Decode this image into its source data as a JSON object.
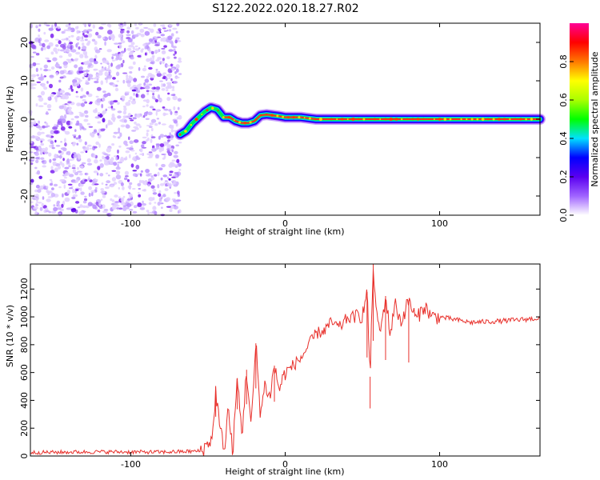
{
  "figure": {
    "title": "S122.2022.020.18.27.R02"
  },
  "chart_data": [
    {
      "type": "heatmap",
      "xlabel": "Height of straight line (km)",
      "ylabel": "Frequency (Hz)",
      "xlim": [
        -165,
        165
      ],
      "ylim": [
        -25,
        25
      ],
      "xticks": [
        -100,
        0,
        100
      ],
      "yticks": [
        -20,
        -10,
        0,
        10,
        20
      ],
      "noise_region_x": [
        -165,
        -68
      ],
      "signal_start_x": -68,
      "ridge": {
        "x": [
          -68,
          -64,
          -60,
          -56,
          -52,
          -48,
          -44,
          -40,
          -36,
          -32,
          -28,
          -24,
          -20,
          -16,
          -12,
          -8,
          -4,
          0,
          10,
          20,
          40,
          60,
          80,
          100,
          120,
          140,
          165
        ],
        "y": [
          -4,
          -3,
          -1,
          0.5,
          2,
          3,
          2.5,
          0.5,
          0.5,
          -0.5,
          -1,
          -1,
          -0.5,
          1,
          1.2,
          1.0,
          0.8,
          0.5,
          0.5,
          0,
          0,
          0,
          0,
          0,
          0,
          0,
          0
        ]
      },
      "colorbar": {
        "label": "Normalized spectral amplitude",
        "range": [
          0,
          1
        ],
        "ticks": [
          "0.0",
          "0.2",
          "0.4",
          "0.6",
          "0.8"
        ],
        "colors": [
          "#ffffff",
          "#a064ff",
          "#5a00f0",
          "#0000ff",
          "#00e1ff",
          "#00ff00",
          "#aaff00",
          "#ffff00",
          "#ff7800",
          "#ff0000",
          "#ff0096"
        ]
      }
    },
    {
      "type": "line",
      "xlabel": "Height of straight line (km)",
      "ylabel": "SNR (10 * v/v)",
      "xlim": [
        -165,
        165
      ],
      "ylim": [
        0,
        1380
      ],
      "xticks": [
        -100,
        0,
        100
      ],
      "yticks": [
        0,
        200,
        400,
        600,
        800,
        1000,
        1200
      ],
      "color": "#e8302b",
      "x": [
        -165,
        -120,
        -80,
        -55,
        -52,
        -47,
        -45,
        -42,
        -39,
        -37,
        -34,
        -31,
        -28,
        -25,
        -22,
        -19,
        -16,
        -13,
        -10,
        -7,
        -4,
        0,
        5,
        10,
        15,
        20,
        25,
        30,
        35,
        40,
        45,
        50,
        53,
        55,
        57,
        59,
        62,
        65,
        68,
        71,
        75,
        80,
        85,
        90,
        95,
        100,
        110,
        120,
        140,
        165
      ],
      "y": [
        25,
        30,
        28,
        35,
        60,
        140,
        470,
        170,
        60,
        350,
        20,
        560,
        150,
        620,
        200,
        810,
        300,
        520,
        420,
        650,
        480,
        600,
        650,
        700,
        790,
        880,
        900,
        960,
        920,
        990,
        1000,
        1010,
        1180,
        570,
        1380,
        1000,
        900,
        1150,
        870,
        1100,
        960,
        1120,
        980,
        1080,
        1000,
        1000,
        980,
        960,
        970,
        990
      ],
      "spikes": [
        {
          "x": -45,
          "y": 470
        },
        {
          "x": -31,
          "y": 560
        },
        {
          "x": -25,
          "y": 620
        },
        {
          "x": -19,
          "y": 810
        },
        {
          "x": -7,
          "y": 650
        },
        {
          "x": 53,
          "y": 1180
        },
        {
          "x": 55,
          "y": 570
        },
        {
          "x": 57,
          "y": 1380
        },
        {
          "x": 65,
          "y": 1150
        },
        {
          "x": 80,
          "y": 1120
        }
      ]
    }
  ]
}
